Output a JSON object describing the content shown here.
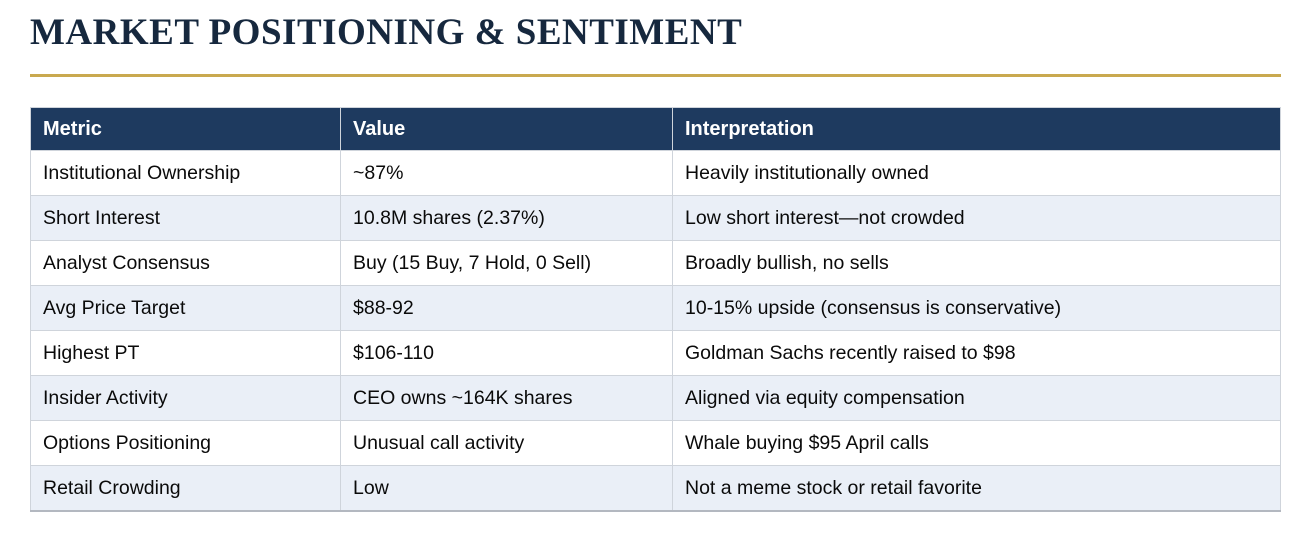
{
  "page": {
    "title": "MARKET POSITIONING & SENTIMENT"
  },
  "colors": {
    "title_text": "#16283e",
    "gold_divider": "#c9a94f",
    "header_bg": "#1e3a5f",
    "header_text": "#ffffff",
    "stripe_row_bg": "#eaeff7",
    "plain_row_bg": "#ffffff",
    "cell_border": "#cfd4db",
    "body_text": "#0a0a0a"
  },
  "table": {
    "columns": [
      "Metric",
      "Value",
      "Interpretation"
    ],
    "rows": [
      {
        "metric": "Institutional Ownership",
        "value": "~87%",
        "interpretation": "Heavily institutionally owned"
      },
      {
        "metric": "Short Interest",
        "value": "10.8M shares (2.37%)",
        "interpretation": "Low short interest—not crowded"
      },
      {
        "metric": "Analyst Consensus",
        "value": "Buy (15 Buy, 7 Hold, 0 Sell)",
        "interpretation": "Broadly bullish, no sells"
      },
      {
        "metric": "Avg Price Target",
        "value": "$88-92",
        "interpretation": "10-15% upside (consensus is conservative)"
      },
      {
        "metric": "Highest PT",
        "value": "$106-110",
        "interpretation": "Goldman Sachs recently raised to $98"
      },
      {
        "metric": "Insider Activity",
        "value": "CEO owns ~164K shares",
        "interpretation": "Aligned via equity compensation"
      },
      {
        "metric": "Options Positioning",
        "value": "Unusual call activity",
        "interpretation": "Whale buying $95 April calls"
      },
      {
        "metric": "Retail Crowding",
        "value": "Low",
        "interpretation": "Not a meme stock or retail favorite"
      }
    ]
  }
}
